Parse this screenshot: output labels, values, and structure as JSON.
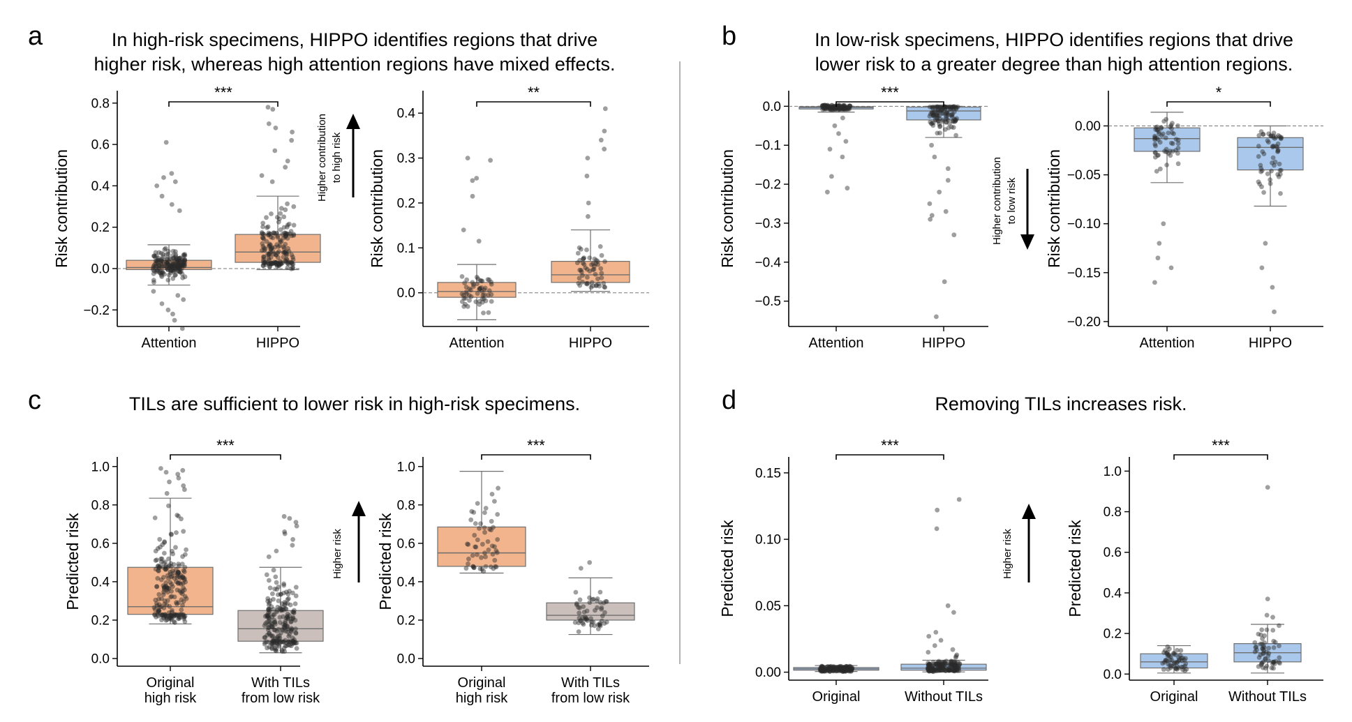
{
  "panels": [
    {
      "letter": "a",
      "title": [
        "In high-risk specimens, HIPPO identifies regions that drive",
        "higher risk, whereas high attention regions have mixed effects."
      ]
    },
    {
      "letter": "b",
      "title": [
        "In low-risk specimens, HIPPO identifies regions that drive",
        "lower risk to a greater degree than high attention regions."
      ]
    },
    {
      "letter": "c",
      "title": [
        "TILs are sufficient to lower risk in high-risk specimens."
      ]
    },
    {
      "letter": "d",
      "title": [
        "Removing TILs increases risk."
      ]
    }
  ],
  "arrows": [
    {
      "text": [
        "Higher contribution",
        "to high risk"
      ],
      "direction": "up"
    },
    {
      "text": [
        "Higher contribution",
        "to low risk"
      ],
      "direction": "down"
    },
    {
      "text": [
        "Higher risk"
      ],
      "direction": "up"
    },
    {
      "text": [
        "Higher risk"
      ],
      "direction": "up"
    }
  ],
  "colors": {
    "orange": "#f2b48c",
    "blue": "#a9c8ec",
    "taupe": "#cbbfbb",
    "edge": "#6e6e6e",
    "dot": "#2a2a2a"
  },
  "chart_data": [
    {
      "id": "a1",
      "type": "box",
      "ylabel": "Risk contribution",
      "ylim": [
        -0.28,
        0.86
      ],
      "yticks": [
        -0.2,
        0.0,
        0.2,
        0.4,
        0.6,
        0.8
      ],
      "tick_labels": [
        "−0.2",
        "0.0",
        "0.2",
        "0.4",
        "0.6",
        "0.8"
      ],
      "zero_line": true,
      "significance": "***",
      "n_points": 170,
      "groups": [
        {
          "label": [
            "Attention"
          ],
          "q1": -0.005,
          "median": 0.005,
          "q3": 0.04,
          "whislo": -0.08,
          "whishi": 0.115,
          "color": "orange",
          "outliers": [
            0.61,
            0.46,
            0.44,
            0.42,
            0.4,
            0.35,
            0.31,
            0.28,
            -0.11,
            -0.13,
            -0.15,
            -0.17,
            -0.2,
            -0.22,
            -0.25,
            -0.29
          ]
        },
        {
          "label": [
            "HIPPO"
          ],
          "q1": 0.03,
          "median": 0.08,
          "q3": 0.165,
          "whislo": -0.005,
          "whishi": 0.35,
          "color": "orange",
          "outliers": [
            0.78,
            0.77,
            0.7,
            0.68,
            0.66,
            0.62,
            0.57,
            0.52,
            0.49,
            0.45,
            0.42
          ]
        }
      ]
    },
    {
      "id": "a2",
      "type": "box",
      "ylabel": "Risk contribution",
      "ylim": [
        -0.075,
        0.45
      ],
      "yticks": [
        0.0,
        0.1,
        0.2,
        0.3,
        0.4
      ],
      "tick_labels": [
        "0.0",
        "0.1",
        "0.2",
        "0.3",
        "0.4"
      ],
      "zero_line": true,
      "significance": "**",
      "n_points": 55,
      "groups": [
        {
          "label": [
            "Attention"
          ],
          "q1": -0.01,
          "median": 0.003,
          "q3": 0.023,
          "whislo": -0.06,
          "whishi": 0.063,
          "color": "orange",
          "outliers": [
            0.3,
            0.295,
            0.255,
            0.25,
            0.215,
            0.14,
            0.115
          ]
        },
        {
          "label": [
            "HIPPO"
          ],
          "q1": 0.023,
          "median": 0.04,
          "q3": 0.07,
          "whislo": 0.003,
          "whishi": 0.14,
          "color": "orange",
          "outliers": [
            0.41,
            0.36,
            0.34,
            0.32,
            0.3,
            0.26,
            0.2,
            0.17
          ]
        }
      ]
    },
    {
      "id": "b1",
      "type": "box",
      "ylabel": "Risk contribution",
      "ylim": [
        -0.565,
        0.04
      ],
      "yticks": [
        0.0,
        -0.1,
        -0.2,
        -0.3,
        -0.4,
        -0.5
      ],
      "tick_labels": [
        "0.0",
        "−0.1",
        "−0.2",
        "−0.3",
        "−0.4",
        "−0.5"
      ],
      "zero_line": true,
      "significance": "***",
      "n_points": 110,
      "groups": [
        {
          "label": [
            "Attention"
          ],
          "q1": -0.007,
          "median": -0.003,
          "q3": -0.001,
          "whislo": -0.015,
          "whishi": 0.0,
          "color": "blue",
          "outliers": [
            -0.03,
            -0.05,
            -0.07,
            -0.09,
            -0.11,
            -0.13,
            -0.18,
            -0.21,
            -0.22
          ]
        },
        {
          "label": [
            "HIPPO"
          ],
          "q1": -0.035,
          "median": -0.012,
          "q3": -0.002,
          "whislo": -0.08,
          "whishi": 0.0,
          "color": "blue",
          "outliers": [
            -0.1,
            -0.13,
            -0.16,
            -0.19,
            -0.22,
            -0.25,
            -0.27,
            -0.28,
            -0.29,
            -0.33,
            -0.45,
            -0.54
          ]
        }
      ]
    },
    {
      "id": "b2",
      "type": "box",
      "ylabel": "Risk contribution",
      "ylim": [
        -0.205,
        0.036
      ],
      "yticks": [
        0.0,
        -0.05,
        -0.1,
        -0.15,
        -0.2
      ],
      "tick_labels": [
        "0.00",
        "−0.05",
        "−0.10",
        "−0.15",
        "−0.20"
      ],
      "zero_line": true,
      "significance": "*",
      "n_points": 55,
      "groups": [
        {
          "label": [
            "Attention"
          ],
          "q1": -0.026,
          "median": -0.013,
          "q3": -0.002,
          "whislo": -0.058,
          "whishi": 0.014,
          "color": "blue",
          "outliers": [
            -0.1,
            -0.12,
            -0.135,
            -0.145,
            -0.16
          ]
        },
        {
          "label": [
            "HIPPO"
          ],
          "q1": -0.045,
          "median": -0.022,
          "q3": -0.012,
          "whislo": -0.082,
          "whishi": 0.0,
          "color": "blue",
          "outliers": [
            -0.12,
            -0.145,
            -0.165,
            -0.19
          ]
        }
      ]
    },
    {
      "id": "c1",
      "type": "box",
      "ylabel": "Predicted risk",
      "ylim": [
        -0.04,
        1.05
      ],
      "yticks": [
        0.0,
        0.2,
        0.4,
        0.6,
        0.8,
        1.0
      ],
      "tick_labels": [
        "0.0",
        "0.2",
        "0.4",
        "0.6",
        "0.8",
        "1.0"
      ],
      "zero_line": false,
      "significance": "***",
      "n_points": 210,
      "groups": [
        {
          "label": [
            "Original",
            "high risk"
          ],
          "q1": 0.23,
          "median": 0.27,
          "q3": 0.475,
          "whislo": 0.18,
          "whishi": 0.835,
          "color": "orange",
          "outliers": [
            0.99,
            0.98,
            0.97,
            0.96,
            0.94,
            0.92,
            0.9,
            0.88,
            0.86
          ]
        },
        {
          "label": [
            "With TILs",
            "from low risk"
          ],
          "q1": 0.09,
          "median": 0.155,
          "q3": 0.25,
          "whislo": 0.03,
          "whishi": 0.475,
          "color": "taupe",
          "outliers": [
            0.74,
            0.73,
            0.71,
            0.69,
            0.66,
            0.65,
            0.62,
            0.59,
            0.56,
            0.53
          ]
        }
      ]
    },
    {
      "id": "c2",
      "type": "box",
      "ylabel": "Predicted risk",
      "ylim": [
        -0.04,
        1.05
      ],
      "yticks": [
        0.0,
        0.2,
        0.4,
        0.6,
        0.8,
        1.0
      ],
      "tick_labels": [
        "0.0",
        "0.2",
        "0.4",
        "0.6",
        "0.8",
        "1.0"
      ],
      "zero_line": false,
      "significance": "***",
      "n_points": 55,
      "groups": [
        {
          "label": [
            "Original",
            "high risk"
          ],
          "q1": 0.48,
          "median": 0.55,
          "q3": 0.685,
          "whislo": 0.445,
          "whishi": 0.975,
          "color": "orange",
          "outliers": []
        },
        {
          "label": [
            "With TILs",
            "from low risk"
          ],
          "q1": 0.2,
          "median": 0.225,
          "q3": 0.29,
          "whislo": 0.125,
          "whishi": 0.42,
          "color": "taupe",
          "outliers": [
            0.5,
            0.47
          ]
        }
      ]
    },
    {
      "id": "d1",
      "type": "box",
      "ylabel": "Predicted risk",
      "ylim": [
        -0.006,
        0.162
      ],
      "yticks": [
        0.0,
        0.05,
        0.1,
        0.15
      ],
      "tick_labels": [
        "0.00",
        "0.05",
        "0.10",
        "0.15"
      ],
      "zero_line": false,
      "significance": "***",
      "n_points": 150,
      "groups": [
        {
          "label": [
            "Original"
          ],
          "q1": 0.0015,
          "median": 0.0025,
          "q3": 0.0035,
          "whislo": 0.0005,
          "whishi": 0.005,
          "color": "blue",
          "outliers": []
        },
        {
          "label": [
            "Without TILs"
          ],
          "q1": 0.0015,
          "median": 0.003,
          "q3": 0.006,
          "whislo": 0.0002,
          "whishi": 0.009,
          "color": "blue",
          "outliers": [
            0.13,
            0.122,
            0.108,
            0.05,
            0.045,
            0.03,
            0.027,
            0.024,
            0.02,
            0.017,
            0.015,
            0.013,
            0.012,
            0.011
          ]
        }
      ]
    },
    {
      "id": "d2",
      "type": "box",
      "ylabel": "Predicted risk",
      "ylim": [
        -0.03,
        1.07
      ],
      "yticks": [
        0.0,
        0.2,
        0.4,
        0.6,
        0.8,
        1.0
      ],
      "tick_labels": [
        "0.0",
        "0.2",
        "0.4",
        "0.6",
        "0.8",
        "1.0"
      ],
      "zero_line": false,
      "significance": "***",
      "n_points": 55,
      "groups": [
        {
          "label": [
            "Original"
          ],
          "q1": 0.03,
          "median": 0.06,
          "q3": 0.1,
          "whislo": 0.005,
          "whishi": 0.14,
          "color": "blue",
          "outliers": []
        },
        {
          "label": [
            "Without TILs"
          ],
          "q1": 0.06,
          "median": 0.105,
          "q3": 0.15,
          "whislo": 0.005,
          "whishi": 0.245,
          "color": "blue",
          "outliers": [
            0.92,
            0.37,
            0.29,
            0.28
          ]
        }
      ]
    }
  ]
}
